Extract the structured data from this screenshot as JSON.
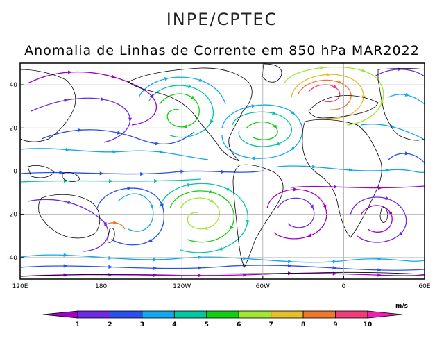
{
  "header": {
    "org": "INPE/CPTEC",
    "title": "Anomalia de Linhas de Corrente em 850 hPa MAR2022"
  },
  "map": {
    "lon_range": [
      -240,
      60
    ],
    "lat_range": [
      -50,
      50
    ],
    "lat_ticks": [
      {
        "value": 40,
        "label": "40"
      },
      {
        "value": 20,
        "label": "20"
      },
      {
        "value": 0,
        "label": "0"
      },
      {
        "value": -20,
        "label": "-20"
      },
      {
        "value": -40,
        "label": "-40"
      }
    ],
    "lon_ticks": [
      {
        "value": -240,
        "label": "120E"
      },
      {
        "value": -180,
        "label": "180"
      },
      {
        "value": -120,
        "label": "120W"
      },
      {
        "value": -60,
        "label": "60W"
      },
      {
        "value": 0,
        "label": "0"
      },
      {
        "value": 60,
        "label": "60E"
      }
    ]
  },
  "colorbar": {
    "units": "m/s",
    "labels": [
      "1",
      "2",
      "3",
      "4",
      "5",
      "6",
      "7",
      "8",
      "9",
      "10"
    ],
    "colors": [
      "#a000c8",
      "#6e28e6",
      "#2850f0",
      "#10a8f0",
      "#00c8a0",
      "#10d010",
      "#a0e632",
      "#e6be28",
      "#f0762a",
      "#f03c78",
      "#f01eb4"
    ]
  }
}
